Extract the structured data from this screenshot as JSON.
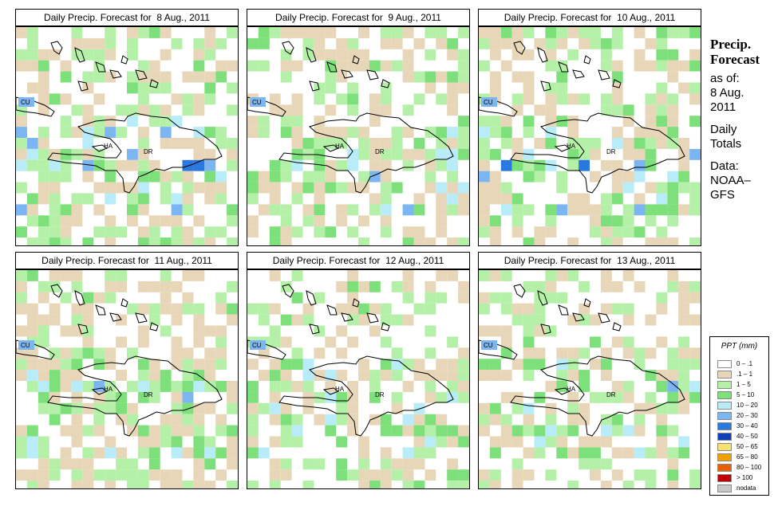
{
  "colors": {
    "c0": "#ffffff",
    "c1": "#e8d6b8",
    "c2": "#b4f0a8",
    "c3": "#7ee07a",
    "c4": "#b8ecf8",
    "c5": "#7cb6f2",
    "c6": "#2878e0",
    "c7": "#1040b8",
    "c8": "#f8e070"
  },
  "panels": [
    {
      "title": "Daily Precip. Forecast for  8 Aug., 2011",
      "seed": 11,
      "bias": 0.55
    },
    {
      "title": "Daily Precip. Forecast for  9 Aug., 2011",
      "seed": 23,
      "bias": 0.5
    },
    {
      "title": "Daily Precip. Forecast for  10 Aug., 2011",
      "seed": 37,
      "bias": 0.55
    },
    {
      "title": "Daily Precip. Forecast for  11 Aug., 2011",
      "seed": 41,
      "bias": 0.45
    },
    {
      "title": "Daily Precip. Forecast for  12 Aug., 2011",
      "seed": 53,
      "bias": 0.35
    },
    {
      "title": "Daily Precip. Forecast for  13 Aug., 2011",
      "seed": 67,
      "bias": 0.4
    }
  ],
  "map_labels": {
    "cuba": "CU",
    "haiti": "HA",
    "dominican_republic": "DR"
  },
  "sidebar": {
    "heading1": "Precip.",
    "heading2": "Forecast",
    "asof": "as of:",
    "date1": "8 Aug.",
    "date2": "2011",
    "totals1": "Daily",
    "totals2": "Totals",
    "data1": "Data:",
    "data2": "NOAA–",
    "data3": "GFS"
  },
  "legend": {
    "title": "PPT (mm)",
    "items": [
      {
        "label": "0 – .1",
        "color": "#ffffff"
      },
      {
        "label": ".1 – 1",
        "color": "#e8d6b8"
      },
      {
        "label": "1 – 5",
        "color": "#b4f0a8"
      },
      {
        "label": "5 – 10",
        "color": "#7ee07a"
      },
      {
        "label": "10 – 20",
        "color": "#b8ecf8"
      },
      {
        "label": "20 – 30",
        "color": "#7cb6f2"
      },
      {
        "label": "30 – 40",
        "color": "#2878e0"
      },
      {
        "label": "40 – 50",
        "color": "#1040b8"
      },
      {
        "label": "50 – 65",
        "color": "#f8e070"
      },
      {
        "label": "65 – 80",
        "color": "#f0a000"
      },
      {
        "label": "80 – 100",
        "color": "#e86000"
      },
      {
        "label": "> 100",
        "color": "#c00000"
      },
      {
        "label": "nodata",
        "color": "#c8c8c8"
      }
    ]
  }
}
